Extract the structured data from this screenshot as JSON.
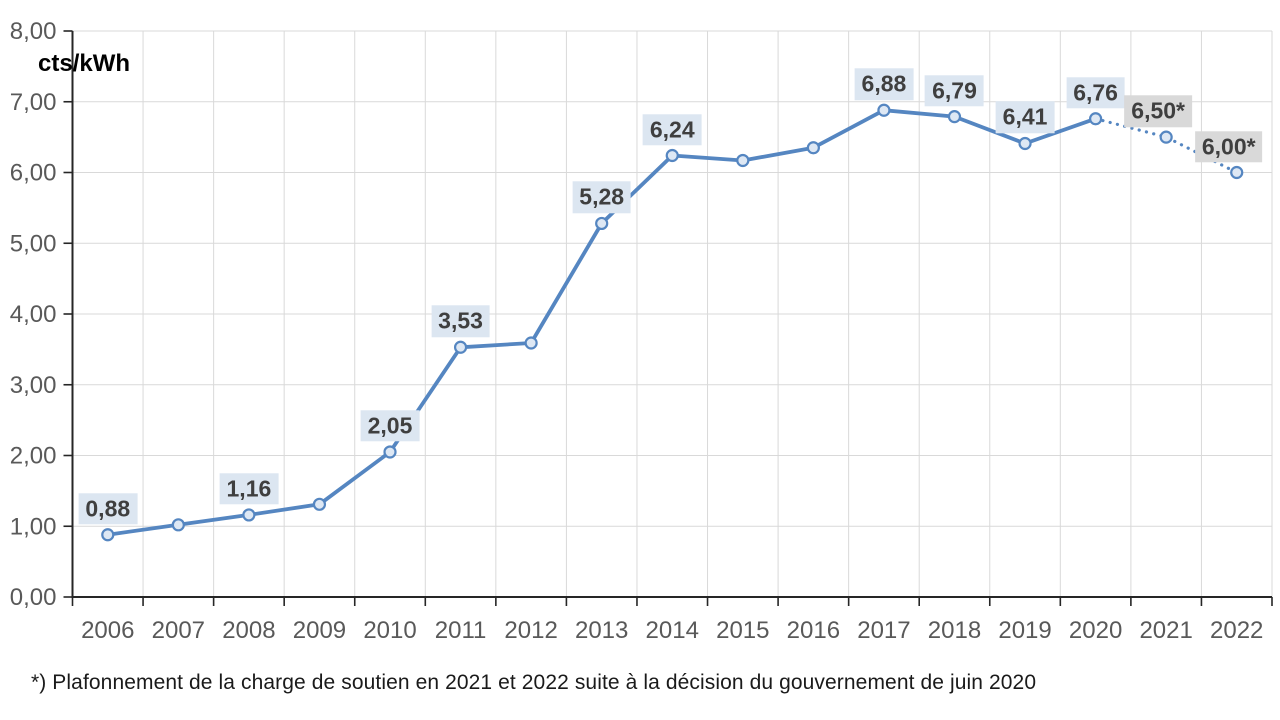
{
  "chart_data": {
    "type": "line",
    "title": "",
    "xlabel": "",
    "ylabel": "cts/kWh",
    "ylim": [
      0,
      8
    ],
    "ytick_interval": 1,
    "ytick_labels": [
      "0,00",
      "1,00",
      "2,00",
      "3,00",
      "4,00",
      "5,00",
      "6,00",
      "7,00",
      "8,00"
    ],
    "grid": true,
    "legend_position": "none",
    "categories": [
      "2006",
      "2007",
      "2008",
      "2009",
      "2010",
      "2011",
      "2012",
      "2013",
      "2014",
      "2015",
      "2016",
      "2017",
      "2018",
      "2019",
      "2020",
      "2021",
      "2022"
    ],
    "series": [
      {
        "name": "charge de soutien",
        "values": [
          0.88,
          1.02,
          1.16,
          1.31,
          2.05,
          3.53,
          3.59,
          5.28,
          6.24,
          6.17,
          6.35,
          6.88,
          6.79,
          6.41,
          6.76,
          6.5,
          6.0
        ],
        "solid_until_index": 14,
        "dotted_from_index": 14
      }
    ],
    "data_labels": [
      {
        "index": 0,
        "text": "0,88",
        "style": "blue"
      },
      {
        "index": 2,
        "text": "1,16",
        "style": "blue"
      },
      {
        "index": 4,
        "text": "2,05",
        "style": "blue"
      },
      {
        "index": 5,
        "text": "3,53",
        "style": "blue"
      },
      {
        "index": 7,
        "text": "5,28",
        "style": "blue"
      },
      {
        "index": 8,
        "text": "6,24",
        "style": "blue"
      },
      {
        "index": 11,
        "text": "6,88",
        "style": "blue"
      },
      {
        "index": 12,
        "text": "6,79",
        "style": "blue"
      },
      {
        "index": 13,
        "text": "6,41",
        "style": "blue"
      },
      {
        "index": 14,
        "text": "6,76",
        "style": "blue"
      },
      {
        "index": 15,
        "text": "6,50*",
        "style": "gray"
      },
      {
        "index": 16,
        "text": "6,00*",
        "style": "gray"
      }
    ],
    "footnote": "*) Plafonnement de la charge de soutien en 2021 et 2022 suite à la décision du gouvernement de juin 2020",
    "colors": {
      "line": "#5586c1",
      "marker_fill": "#dee8f4",
      "label_bg_blue": "#dce6f1",
      "label_bg_gray": "#d9d9d9",
      "label_text": "#3f3f3f",
      "axis_line": "#262626",
      "axis_text": "#595959",
      "gridline": "#d9d9d9"
    }
  }
}
